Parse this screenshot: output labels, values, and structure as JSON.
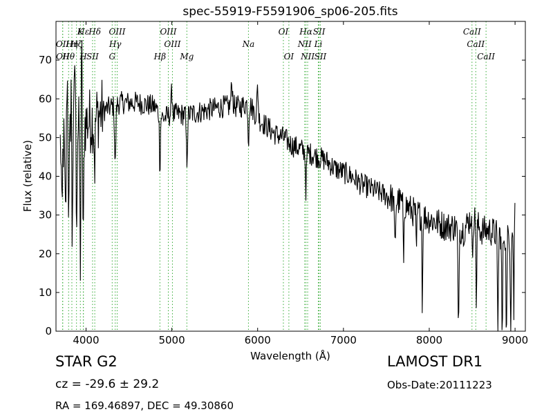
{
  "chart_data": {
    "type": "line",
    "title": "spec-55919-F5591906_sp06-205.fits",
    "xlabel": "Wavelength (Å)",
    "ylabel": "Flux (relative)",
    "xlim": [
      3650,
      9120
    ],
    "ylim": [
      0,
      80
    ],
    "x_ticks": [
      4000,
      5000,
      6000,
      7000,
      8000,
      9000
    ],
    "y_ticks": [
      0,
      10,
      20,
      30,
      40,
      50,
      60,
      70
    ],
    "grid": false,
    "series_color": "#000000",
    "line_marker_color": "#33aa33",
    "continuum": [
      [
        3700,
        48
      ],
      [
        3800,
        50
      ],
      [
        3900,
        52
      ],
      [
        4000,
        54
      ],
      [
        4100,
        55
      ],
      [
        4200,
        57
      ],
      [
        4400,
        59
      ],
      [
        4600,
        59
      ],
      [
        4800,
        58
      ],
      [
        4900,
        55
      ],
      [
        5000,
        56
      ],
      [
        5200,
        56
      ],
      [
        5400,
        57
      ],
      [
        5600,
        58
      ],
      [
        5800,
        58
      ],
      [
        5900,
        59
      ],
      [
        6000,
        55
      ],
      [
        6100,
        53
      ],
      [
        6200,
        51
      ],
      [
        6300,
        50
      ],
      [
        6400,
        48
      ],
      [
        6500,
        47
      ],
      [
        6600,
        46
      ],
      [
        6700,
        45
      ],
      [
        6800,
        44
      ],
      [
        6900,
        42
      ],
      [
        7000,
        41
      ],
      [
        7100,
        40
      ],
      [
        7200,
        38
      ],
      [
        7300,
        37
      ],
      [
        7400,
        36
      ],
      [
        7500,
        35
      ],
      [
        7600,
        34
      ],
      [
        7700,
        33
      ],
      [
        7800,
        31
      ],
      [
        7900,
        30
      ],
      [
        8000,
        29
      ],
      [
        8100,
        28
      ],
      [
        8200,
        27
      ],
      [
        8300,
        27
      ],
      [
        8400,
        26
      ],
      [
        8500,
        30
      ],
      [
        8600,
        26
      ],
      [
        8700,
        26
      ],
      [
        8800,
        25
      ],
      [
        8900,
        25
      ],
      [
        9000,
        27
      ]
    ],
    "absorption_features": [
      [
        3720,
        22,
        8
      ],
      [
        3760,
        20,
        10
      ],
      [
        3800,
        20,
        8
      ],
      [
        3836,
        40,
        8
      ],
      [
        3890,
        20,
        8
      ],
      [
        3934,
        35,
        8
      ],
      [
        3968,
        33,
        8
      ],
      [
        4101,
        12,
        8
      ],
      [
        4340,
        16,
        10
      ],
      [
        4861,
        14,
        8
      ],
      [
        5175,
        12,
        10
      ],
      [
        5893,
        10,
        8
      ],
      [
        6563,
        10,
        8
      ],
      [
        7600,
        12,
        10
      ],
      [
        7700,
        16,
        6
      ],
      [
        7850,
        13,
        6
      ],
      [
        7920,
        24,
        6
      ],
      [
        8340,
        28,
        8
      ],
      [
        8500,
        26,
        8
      ],
      [
        8550,
        24,
        6
      ],
      [
        8800,
        25,
        8
      ],
      [
        8850,
        27,
        8
      ],
      [
        8900,
        27,
        8
      ],
      [
        8950,
        24,
        8
      ],
      [
        8985,
        23,
        6
      ]
    ],
    "emission_features": [
      [
        3780,
        18,
        8
      ],
      [
        3830,
        30,
        8
      ],
      [
        3870,
        20,
        8
      ],
      [
        3950,
        18,
        8
      ],
      [
        5000,
        6,
        10
      ],
      [
        5700,
        6,
        12
      ],
      [
        6000,
        8,
        10
      ],
      [
        8498,
        16,
        8
      ],
      [
        9000,
        6,
        8
      ]
    ],
    "line_markers": [
      {
        "label": "Hε",
        "x": 3970,
        "row": 0
      },
      {
        "label": "K",
        "x": 3934,
        "row": 0
      },
      {
        "label": "Hδ",
        "x": 4102,
        "row": 0
      },
      {
        "label": "OIII",
        "x": 4363,
        "row": 0
      },
      {
        "label": "OIII",
        "x": 4959,
        "row": 0
      },
      {
        "label": "OI",
        "x": 6300,
        "row": 0
      },
      {
        "label": "Hα",
        "x": 6563,
        "row": 0
      },
      {
        "label": "SII",
        "x": 6716,
        "row": 0
      },
      {
        "label": "CaII",
        "x": 8498,
        "row": 0
      },
      {
        "label": "OII",
        "x": 3727,
        "row": 1
      },
      {
        "label": "Hη",
        "x": 3835,
        "row": 1
      },
      {
        "label": "Hζ",
        "x": 3889,
        "row": 1
      },
      {
        "label": "Hγ",
        "x": 4340,
        "row": 1
      },
      {
        "label": "OIII",
        "x": 5007,
        "row": 1
      },
      {
        "label": "NII",
        "x": 6548,
        "row": 1
      },
      {
        "label": "Li",
        "x": 6707,
        "row": 1
      },
      {
        "label": "CaII",
        "x": 8542,
        "row": 1
      },
      {
        "label": "OII",
        "x": 3729,
        "row": 2
      },
      {
        "label": "Hθ",
        "x": 3797,
        "row": 2
      },
      {
        "label": "H",
        "x": 3968,
        "row": 2
      },
      {
        "label": "SII",
        "x": 4076,
        "row": 2
      },
      {
        "label": "G",
        "x": 4305,
        "row": 2
      },
      {
        "label": "Hβ",
        "x": 4861,
        "row": 2
      },
      {
        "label": "Mg",
        "x": 5175,
        "row": 2
      },
      {
        "label": "Na",
        "x": 5893,
        "row": 1
      },
      {
        "label": "OI",
        "x": 6364,
        "row": 2
      },
      {
        "label": "NII",
        "x": 6583,
        "row": 2
      },
      {
        "label": "SII",
        "x": 6731,
        "row": 2
      },
      {
        "label": "CaII",
        "x": 8662,
        "row": 2
      }
    ]
  },
  "info": {
    "object_class": "STAR   G2",
    "survey": "LAMOST DR1",
    "cz": "cz = -29.6 ± 29.2",
    "obs_date": "Obs-Date:20111223",
    "radec": "RA = 169.46897, DEC = 49.30860"
  }
}
